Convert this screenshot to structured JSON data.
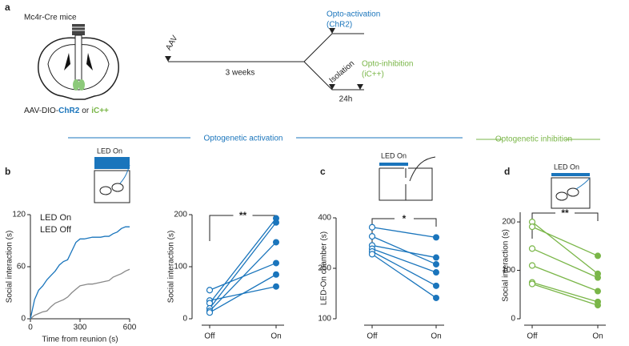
{
  "schematic": {
    "panel_label": "a",
    "mouse_line": "Mc4r-Cre mice",
    "virus_prefix": "AAV-DIO-",
    "virus_chr2": "ChR2",
    "virus_or": "or",
    "virus_ic": "iC++",
    "aav": "AAV",
    "duration": "3 weeks",
    "activation": "Opto-activation",
    "activation_sub": "(ChR2)",
    "isolation": "Isolation",
    "inhibition": "Opto-inhibition",
    "inhibition_sub": "(iC++)",
    "delay": "24h"
  },
  "sections": {
    "activation": "Optogenetic activation",
    "inhibition": "Optogenetic inhibition"
  },
  "panel_labels": [
    "b",
    "c",
    "d"
  ],
  "icon_labels": [
    "LED On",
    "LED On",
    "LED On"
  ],
  "chart_data": [
    {
      "type": "line",
      "xlabel": "Time from reunion (s)",
      "ylabel": "Social interaction (s)",
      "xlim": [
        0,
        600
      ],
      "xticks": [
        0,
        300,
        600
      ],
      "ylim": [
        0,
        120
      ],
      "yticks": [
        0,
        60,
        120
      ],
      "legend": "upper-left",
      "legend_colors": [
        "#1a75bc",
        "#222222"
      ],
      "x": [
        0,
        25,
        50,
        75,
        100,
        125,
        150,
        175,
        200,
        225,
        250,
        275,
        300,
        325,
        350,
        375,
        400,
        425,
        450,
        475,
        500,
        525,
        550,
        575,
        600
      ],
      "series": [
        {
          "name": "LED On",
          "color": "#1a75bc",
          "values": [
            0,
            22,
            33,
            38,
            45,
            50,
            55,
            62,
            66,
            68,
            78,
            88,
            92,
            92,
            93,
            94,
            94,
            94,
            95,
            95,
            98,
            100,
            104,
            106,
            106
          ]
        },
        {
          "name": "LED Off",
          "color": "#888888",
          "values": [
            0,
            4,
            6,
            8,
            9,
            14,
            18,
            20,
            22,
            25,
            30,
            34,
            38,
            39,
            40,
            40,
            41,
            42,
            43,
            44,
            48,
            50,
            52,
            55,
            57
          ]
        }
      ]
    },
    {
      "type": "paired",
      "ylabel": "Social interaction (s)",
      "categories": [
        "Off",
        "On"
      ],
      "ylim": [
        0,
        200
      ],
      "yticks": [
        0,
        100,
        200
      ],
      "color": "#1a75bc",
      "annotation": "**",
      "values": [
        [
          55,
          107
        ],
        [
          35,
          62
        ],
        [
          30,
          193
        ],
        [
          20,
          185
        ],
        [
          15,
          147
        ],
        [
          12,
          85
        ]
      ]
    },
    {
      "type": "paired",
      "ylabel": "LED-On chamber (s)",
      "categories": [
        "Off",
        "On"
      ],
      "ylim": [
        100,
        400
      ],
      "yticks": [
        100,
        250,
        400
      ],
      "color": "#1a75bc",
      "annotation": "*",
      "values": [
        [
          372,
          342
        ],
        [
          345,
          262
        ],
        [
          318,
          282
        ],
        [
          308,
          238
        ],
        [
          300,
          198
        ],
        [
          292,
          162
        ]
      ]
    },
    {
      "type": "paired",
      "ylabel": "Social interaction (s)",
      "categories": [
        "Off",
        "On"
      ],
      "ylim": [
        0,
        220
      ],
      "yticks": [
        0,
        100,
        200
      ],
      "color": "#7ab648",
      "annotation": "**",
      "values": [
        [
          200,
          93
        ],
        [
          190,
          130
        ],
        [
          145,
          85
        ],
        [
          110,
          57
        ],
        [
          75,
          35
        ],
        [
          72,
          28
        ]
      ]
    }
  ]
}
